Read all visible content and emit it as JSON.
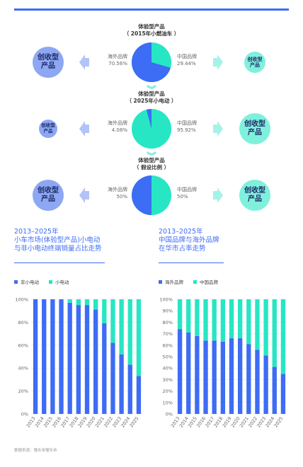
{
  "colors": {
    "blue": "#3d6cf5",
    "teal": "#27e6c3",
    "light_blue": "#8ea7f3",
    "light_teal": "#7ff0dc",
    "arrow_blue": "#b3c3f6",
    "arrow_teal": "#a5f3e6"
  },
  "scenarios": [
    {
      "title_line1": "体验型产品",
      "title_line2": "（ 2015年小燃油车 ）",
      "left_label": "海外品牌",
      "left_value": "70.56%",
      "right_label": "中国品牌",
      "right_value": "29.44%",
      "left_share": 70.56,
      "left_circle": "创收型\n产品",
      "right_circle": "创收型\n产品"
    },
    {
      "title_line1": "体验型产品",
      "title_line2": "（ 2025年小电动 ）",
      "left_label": "海外品牌",
      "left_value": "4.08%",
      "right_label": "中国品牌",
      "right_value": "95.92%",
      "left_share": 4.08,
      "left_circle": "创收型\n产品",
      "right_circle": "创收型\n产品"
    },
    {
      "title_line1": "体验型产品",
      "title_line2": "（ 假设比例 ）",
      "left_label": "海外品牌",
      "left_value": "50%",
      "right_label": "中国品牌",
      "right_value": "50%",
      "left_share": 50,
      "left_circle": "创收型\n产品",
      "right_circle": "创收型\n产品"
    }
  ],
  "chart_left": {
    "title_line1": "2013–2025年",
    "title_line2": "小车市场(体验型产品)小电动",
    "title_line3": "与非小电动终端销量占比走势",
    "legend": [
      "非小电动",
      "小电动"
    ]
  },
  "chart_right": {
    "title_line1": "2013–2025年",
    "title_line2": "中国品牌与海外品牌",
    "title_line3": "在华市占率走势",
    "legend": [
      "海外品牌",
      "中国品牌"
    ]
  },
  "source": "数据来源：懂车帝懂车帝",
  "chart_data": [
    {
      "type": "bar",
      "stacked": true,
      "categories": [
        "2013",
        "2014",
        "2015",
        "2016",
        "2017",
        "2018",
        "2019",
        "2020",
        "2021",
        "2022",
        "2023",
        "2024",
        "2025"
      ],
      "series": [
        {
          "name": "非小电动",
          "values": [
            100,
            100,
            100,
            100,
            97,
            95,
            95,
            91,
            79,
            62,
            52,
            43,
            33
          ]
        },
        {
          "name": "小电动",
          "values": [
            0,
            0,
            0,
            0,
            3,
            5,
            5,
            9,
            21,
            38,
            48,
            57,
            67
          ]
        }
      ],
      "yticks": [
        "0%",
        "20%",
        "40%",
        "60%",
        "80%",
        "100%"
      ],
      "ylim": [
        0,
        100
      ]
    },
    {
      "type": "bar",
      "stacked": true,
      "categories": [
        "2013",
        "2014",
        "2015",
        "2016",
        "2017",
        "2018",
        "2019",
        "2020",
        "2021",
        "2022",
        "2023",
        "2024",
        "2025"
      ],
      "series": [
        {
          "name": "海外品牌",
          "values": [
            74,
            71,
            68,
            64,
            64,
            63,
            66,
            66,
            61,
            56,
            51,
            41,
            35
          ]
        },
        {
          "name": "中国品牌",
          "values": [
            26,
            29,
            32,
            36,
            36,
            37,
            34,
            34,
            39,
            44,
            49,
            59,
            65
          ]
        }
      ],
      "yticks": [
        "0%",
        "10%",
        "20%",
        "30%",
        "40%",
        "50%",
        "60%",
        "70%",
        "80%",
        "90%",
        "100%"
      ],
      "ylim": [
        0,
        100
      ]
    }
  ]
}
